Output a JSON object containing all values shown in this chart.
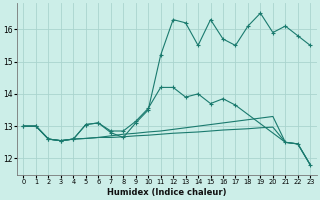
{
  "xlabel": "Humidex (Indice chaleur)",
  "bg_color": "#cceee8",
  "line_color": "#1a7a6e",
  "grid_color": "#aad4ce",
  "xlim": [
    -0.5,
    23.5
  ],
  "ylim": [
    11.5,
    16.8
  ],
  "yticks": [
    12,
    13,
    14,
    15,
    16
  ],
  "xticks": [
    0,
    1,
    2,
    3,
    4,
    5,
    6,
    7,
    8,
    9,
    10,
    11,
    12,
    13,
    14,
    15,
    16,
    17,
    18,
    19,
    20,
    21,
    22,
    23
  ],
  "series1": [
    [
      0,
      13.0
    ],
    [
      1,
      13.0
    ],
    [
      2,
      12.6
    ],
    [
      3,
      12.55
    ],
    [
      4,
      12.6
    ],
    [
      5,
      13.05
    ],
    [
      6,
      13.1
    ],
    [
      7,
      12.8
    ],
    [
      8,
      12.65
    ],
    [
      9,
      13.1
    ],
    [
      10,
      13.5
    ],
    [
      11,
      15.2
    ],
    [
      12,
      16.3
    ],
    [
      13,
      16.2
    ],
    [
      14,
      15.5
    ],
    [
      15,
      16.3
    ],
    [
      16,
      15.7
    ],
    [
      17,
      15.5
    ],
    [
      18,
      16.1
    ],
    [
      19,
      16.5
    ],
    [
      20,
      15.9
    ],
    [
      21,
      16.1
    ],
    [
      22,
      15.8
    ],
    [
      23,
      15.5
    ]
  ],
  "series2": [
    [
      0,
      13.0
    ],
    [
      1,
      13.0
    ],
    [
      2,
      12.6
    ],
    [
      3,
      12.55
    ],
    [
      4,
      12.6
    ],
    [
      5,
      13.05
    ],
    [
      6,
      13.1
    ],
    [
      7,
      12.85
    ],
    [
      8,
      12.85
    ],
    [
      9,
      13.15
    ],
    [
      10,
      13.55
    ],
    [
      11,
      14.2
    ],
    [
      12,
      14.2
    ],
    [
      13,
      13.9
    ],
    [
      14,
      14.0
    ],
    [
      15,
      13.7
    ],
    [
      16,
      13.85
    ],
    [
      17,
      13.65
    ],
    [
      21,
      12.5
    ],
    [
      22,
      12.45
    ],
    [
      23,
      11.8
    ]
  ],
  "series3": [
    [
      0,
      13.0
    ],
    [
      1,
      13.0
    ],
    [
      2,
      12.6
    ],
    [
      3,
      12.55
    ],
    [
      4,
      12.6
    ],
    [
      5,
      12.62
    ],
    [
      6,
      12.65
    ],
    [
      7,
      12.65
    ],
    [
      8,
      12.67
    ],
    [
      9,
      12.7
    ],
    [
      10,
      12.72
    ],
    [
      11,
      12.75
    ],
    [
      12,
      12.78
    ],
    [
      13,
      12.8
    ],
    [
      14,
      12.82
    ],
    [
      15,
      12.85
    ],
    [
      16,
      12.88
    ],
    [
      17,
      12.9
    ],
    [
      18,
      12.92
    ],
    [
      19,
      12.95
    ],
    [
      20,
      12.97
    ],
    [
      21,
      12.5
    ],
    [
      22,
      12.45
    ],
    [
      23,
      11.8
    ]
  ],
  "series4": [
    [
      0,
      13.0
    ],
    [
      1,
      13.0
    ],
    [
      2,
      12.6
    ],
    [
      3,
      12.55
    ],
    [
      4,
      12.6
    ],
    [
      5,
      12.62
    ],
    [
      6,
      12.65
    ],
    [
      7,
      12.7
    ],
    [
      8,
      12.75
    ],
    [
      9,
      12.78
    ],
    [
      10,
      12.82
    ],
    [
      11,
      12.85
    ],
    [
      12,
      12.9
    ],
    [
      13,
      12.95
    ],
    [
      14,
      13.0
    ],
    [
      15,
      13.05
    ],
    [
      16,
      13.1
    ],
    [
      17,
      13.15
    ],
    [
      18,
      13.2
    ],
    [
      19,
      13.25
    ],
    [
      20,
      13.3
    ],
    [
      21,
      12.5
    ],
    [
      22,
      12.45
    ],
    [
      23,
      11.8
    ]
  ]
}
